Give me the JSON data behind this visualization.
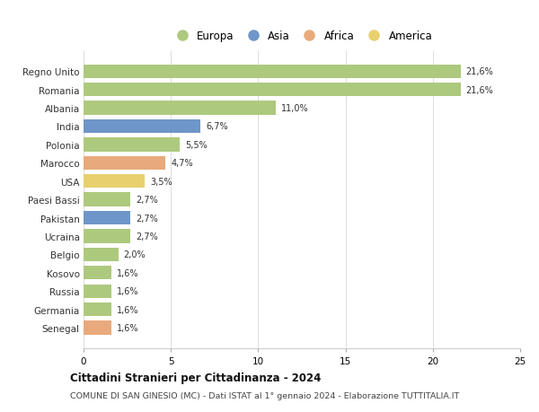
{
  "countries": [
    "Regno Unito",
    "Romania",
    "Albania",
    "India",
    "Polonia",
    "Marocco",
    "USA",
    "Paesi Bassi",
    "Pakistan",
    "Ucraina",
    "Belgio",
    "Kosovo",
    "Russia",
    "Germania",
    "Senegal"
  ],
  "values": [
    21.6,
    21.6,
    11.0,
    6.7,
    5.5,
    4.7,
    3.5,
    2.7,
    2.7,
    2.7,
    2.0,
    1.6,
    1.6,
    1.6,
    1.6
  ],
  "labels": [
    "21,6%",
    "21,6%",
    "11,0%",
    "6,7%",
    "5,5%",
    "4,7%",
    "3,5%",
    "2,7%",
    "2,7%",
    "2,7%",
    "2,0%",
    "1,6%",
    "1,6%",
    "1,6%",
    "1,6%"
  ],
  "continents": [
    "Europa",
    "Europa",
    "Europa",
    "Asia",
    "Europa",
    "Africa",
    "America",
    "Europa",
    "Asia",
    "Europa",
    "Europa",
    "Europa",
    "Europa",
    "Europa",
    "Africa"
  ],
  "continent_colors": {
    "Europa": "#adc97e",
    "Asia": "#6e96c8",
    "Africa": "#e8aa7c",
    "America": "#e8d06e"
  },
  "legend_order": [
    "Europa",
    "Asia",
    "Africa",
    "America"
  ],
  "title": "Cittadini Stranieri per Cittadinanza - 2024",
  "subtitle": "COMUNE DI SAN GINESIO (MC) - Dati ISTAT al 1° gennaio 2024 - Elaborazione TUTTITALIA.IT",
  "xlim": [
    0,
    25
  ],
  "xticks": [
    0,
    5,
    10,
    15,
    20,
    25
  ],
  "background_color": "#ffffff",
  "grid_color": "#dddddd",
  "bar_height": 0.75
}
